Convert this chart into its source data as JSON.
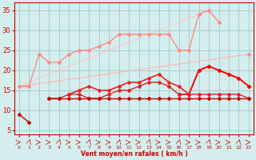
{
  "x": [
    0,
    1,
    2,
    3,
    4,
    5,
    6,
    7,
    8,
    9,
    10,
    11,
    12,
    13,
    14,
    15,
    16,
    17,
    18,
    19,
    20,
    21,
    22,
    23
  ],
  "series": [
    {
      "name": "lower_flat",
      "y": [
        9,
        7,
        null,
        null,
        null,
        null,
        null,
        null,
        null,
        null,
        null,
        null,
        null,
        null,
        null,
        null,
        null,
        null,
        null,
        null,
        null,
        null,
        null,
        null
      ],
      "color": "#cc0000",
      "lw": 1.0,
      "marker": "D",
      "ms": 2.0,
      "zorder": 5
    },
    {
      "name": "middle_lower",
      "y": [
        null,
        null,
        null,
        13,
        13,
        13,
        13,
        13,
        13,
        13,
        13,
        13,
        13,
        13,
        13,
        13,
        13,
        13,
        13,
        13,
        13,
        13,
        13,
        13
      ],
      "color": "#cc0000",
      "lw": 1.0,
      "marker": "D",
      "ms": 2.0,
      "zorder": 5
    },
    {
      "name": "rising_mid1",
      "y": [
        null,
        null,
        null,
        13,
        13,
        14,
        14,
        13,
        13,
        14,
        15,
        15,
        16,
        17,
        17,
        16,
        14,
        14,
        14,
        14,
        14,
        14,
        14,
        13
      ],
      "color": "#dd2222",
      "lw": 1.0,
      "marker": "D",
      "ms": 2.0,
      "zorder": 4
    },
    {
      "name": "rising_mid2",
      "y": [
        null,
        null,
        null,
        null,
        null,
        14,
        15,
        16,
        15,
        15,
        16,
        17,
        17,
        18,
        19,
        17,
        16,
        14,
        20,
        21,
        20,
        19,
        18,
        16
      ],
      "color": "#ee2222",
      "lw": 1.2,
      "marker": "D",
      "ms": 2.0,
      "zorder": 3
    },
    {
      "name": "upper_jagged",
      "y": [
        null,
        null,
        null,
        null,
        null,
        null,
        null,
        null,
        null,
        null,
        null,
        null,
        null,
        null,
        null,
        null,
        14,
        14,
        20,
        21,
        20,
        19,
        18,
        16
      ],
      "color": "#ff0000",
      "lw": 1.2,
      "marker": "D",
      "ms": 2.0,
      "zorder": 3
    },
    {
      "name": "pink_lower",
      "y": [
        16,
        16,
        24,
        22,
        22,
        24,
        25,
        25,
        26,
        27,
        29,
        29,
        29,
        29,
        29,
        29,
        25,
        25,
        34,
        35,
        32,
        null,
        null,
        24
      ],
      "color": "#ff8888",
      "lw": 1.0,
      "marker": "D",
      "ms": 2.0,
      "zorder": 2
    },
    {
      "name": "pink_upper_line",
      "y": [
        16,
        16,
        null,
        null,
        null,
        null,
        null,
        null,
        null,
        null,
        null,
        null,
        null,
        null,
        null,
        null,
        null,
        null,
        null,
        null,
        null,
        null,
        null,
        24
      ],
      "color": "#ffaaaa",
      "lw": 1.2,
      "marker": null,
      "ms": 0,
      "zorder": 1
    },
    {
      "name": "pink_diagonal",
      "y": [
        16,
        null,
        null,
        null,
        null,
        null,
        null,
        null,
        null,
        null,
        null,
        null,
        null,
        null,
        null,
        null,
        null,
        null,
        null,
        35,
        null,
        null,
        null,
        null
      ],
      "color": "#ffbbbb",
      "lw": 1.2,
      "marker": null,
      "ms": 0,
      "zorder": 1
    }
  ],
  "ylim": [
    4,
    37
  ],
  "xlim": [
    -0.5,
    23.5
  ],
  "yticks": [
    5,
    10,
    15,
    20,
    25,
    30,
    35
  ],
  "xticks": [
    0,
    1,
    2,
    3,
    4,
    5,
    6,
    7,
    8,
    9,
    10,
    11,
    12,
    13,
    14,
    15,
    16,
    17,
    18,
    19,
    20,
    21,
    22,
    23
  ],
  "xlabel": "Vent moyen/en rafales ( km/h )",
  "bg_color": "#d4eeee",
  "grid_color": "#aacccc",
  "tick_color": "#cc0000",
  "label_color": "#cc0000",
  "arrow_color": "#cc0000"
}
